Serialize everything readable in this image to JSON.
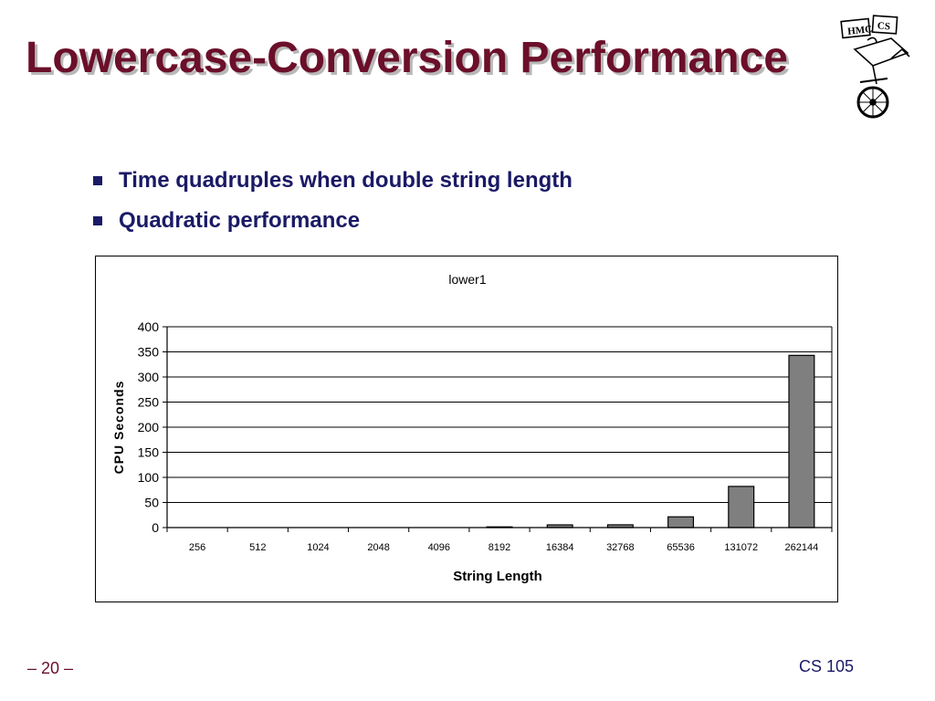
{
  "slide": {
    "title": "Lowercase-Conversion Performance",
    "bullets": [
      "Time quadruples when double string length",
      "Quadratic performance"
    ],
    "page_number": "– 20 –",
    "course": "CS 105",
    "logo_text": "HMC CS"
  },
  "colors": {
    "title": "#6b0f2a",
    "bullet_text": "#1a1a66",
    "bar_fill": "#7f7f7f",
    "bar_stroke": "#000000"
  },
  "chart_data": {
    "type": "bar",
    "title": "lower1",
    "xlabel": "String Length",
    "ylabel": "CPU Seconds",
    "categories": [
      "256",
      "512",
      "1024",
      "2048",
      "4096",
      "8192",
      "16384",
      "32768",
      "65536",
      "131072",
      "262144"
    ],
    "values": [
      0.0,
      0.0,
      0.0,
      0.1,
      0.3,
      1.4,
      5.4,
      5.5,
      21.4,
      82.0,
      343.0
    ],
    "ylim": [
      0,
      400
    ],
    "yticks": [
      0,
      50,
      100,
      150,
      200,
      250,
      300,
      350,
      400
    ],
    "grid": true,
    "legend": "none"
  }
}
